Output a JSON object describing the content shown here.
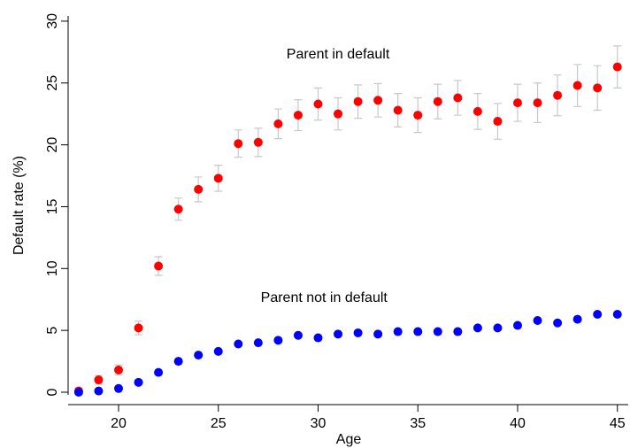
{
  "chart_data": {
    "type": "scatter",
    "xlabel": "Age",
    "ylabel": "Default rate (%)",
    "xlim": [
      17.5,
      45.3
    ],
    "ylim": [
      -1.2,
      30.5
    ],
    "xticks": [
      20,
      25,
      30,
      35,
      40,
      45
    ],
    "yticks": [
      0,
      5,
      10,
      15,
      20,
      25,
      30
    ],
    "grid": false,
    "legend": "none",
    "annotations": [
      {
        "text": "Parent in default",
        "x": 31.0,
        "y": 27.0
      },
      {
        "text": "Parent not in default",
        "x": 30.3,
        "y": 7.3
      }
    ],
    "series": [
      {
        "name": "Parent in default",
        "color": "#ff0000",
        "x": [
          18,
          19,
          20,
          21,
          22,
          23,
          24,
          25,
          26,
          27,
          28,
          29,
          30,
          31,
          32,
          33,
          34,
          35,
          36,
          37,
          38,
          39,
          40,
          41,
          42,
          43,
          44,
          45
        ],
        "y": [
          0.1,
          1.0,
          1.8,
          5.2,
          10.2,
          14.8,
          16.4,
          17.3,
          20.1,
          20.2,
          21.7,
          22.4,
          23.3,
          22.5,
          23.5,
          23.6,
          22.8,
          22.4,
          23.5,
          23.8,
          22.7,
          21.9,
          23.4,
          23.4,
          24.0,
          24.8,
          24.6,
          26.3
        ],
        "err": [
          0.25,
          0.35,
          0.4,
          0.55,
          0.75,
          0.9,
          1.0,
          1.05,
          1.1,
          1.15,
          1.2,
          1.25,
          1.3,
          1.3,
          1.35,
          1.35,
          1.35,
          1.4,
          1.4,
          1.4,
          1.45,
          1.45,
          1.5,
          1.6,
          1.65,
          1.7,
          1.8,
          1.7
        ]
      },
      {
        "name": "Parent not in default",
        "color": "#0000ff",
        "x": [
          18,
          19,
          20,
          21,
          22,
          23,
          24,
          25,
          26,
          27,
          28,
          29,
          30,
          31,
          32,
          33,
          34,
          35,
          36,
          37,
          38,
          39,
          40,
          41,
          42,
          43,
          44,
          45
        ],
        "y": [
          0.0,
          0.1,
          0.3,
          0.8,
          1.6,
          2.5,
          3.0,
          3.3,
          3.9,
          4.0,
          4.2,
          4.6,
          4.4,
          4.7,
          4.8,
          4.7,
          4.9,
          4.9,
          4.9,
          4.9,
          5.2,
          5.2,
          5.4,
          5.8,
          5.6,
          5.9,
          6.3,
          6.3
        ]
      }
    ]
  }
}
